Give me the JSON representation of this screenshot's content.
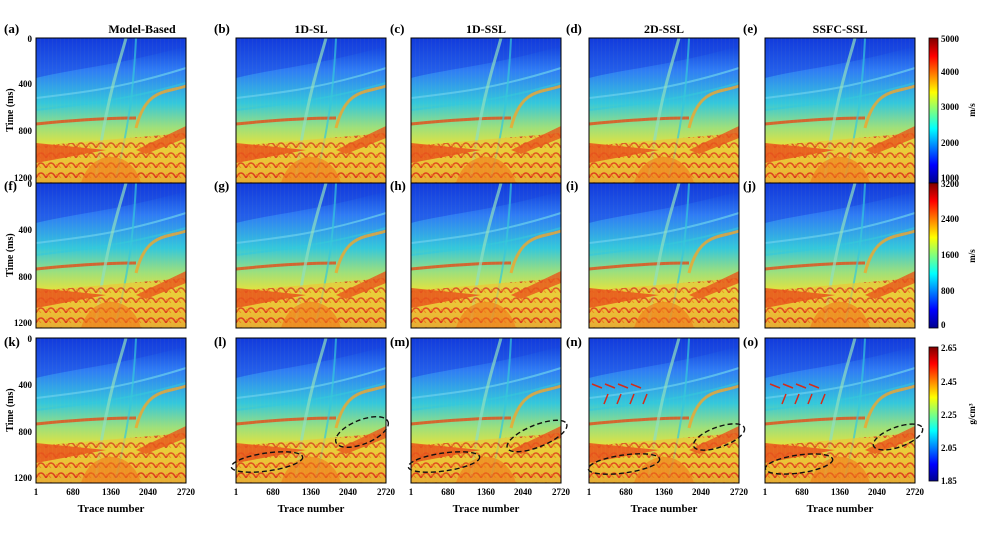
{
  "panel_labels": [
    "(a)",
    "(b)",
    "(c)",
    "(d)",
    "(e)",
    "(f)",
    "(g)",
    "(h)",
    "(i)",
    "(j)",
    "(k)",
    "(l)",
    "(m)",
    "(n)",
    "(o)"
  ],
  "column_titles": [
    "Model-Based",
    "1D-SL",
    "1D-SSL",
    "2D-SSL",
    "SSFC-SSL"
  ],
  "y_axis": {
    "label": "Time (ms)",
    "ticks": [
      "0",
      "400",
      "800",
      "1200"
    ]
  },
  "x_axis": {
    "label": "Trace number",
    "ticks": [
      "1",
      "680",
      "1360",
      "2040",
      "2720"
    ]
  },
  "colorbars": [
    {
      "unit": "m/s",
      "ticks": [
        "5000",
        "4000",
        "3000",
        "2000",
        "1000"
      ]
    },
    {
      "unit": "m/s",
      "ticks": [
        "3200",
        "2400",
        "1600",
        "800",
        "0"
      ]
    },
    {
      "unit": "g/cm³",
      "ticks": [
        "2.65",
        "2.45",
        "2.25",
        "2.05",
        "1.85"
      ]
    }
  ],
  "colors": {
    "deep_blue": "#0a2fd8",
    "blue": "#2f7cf5",
    "cyan": "#34c8dc",
    "yellow": "#e8e23a",
    "orange": "#f07a1a",
    "red": "#d8281c",
    "arrow": "#d32a1a",
    "ellipse": "#111111"
  }
}
